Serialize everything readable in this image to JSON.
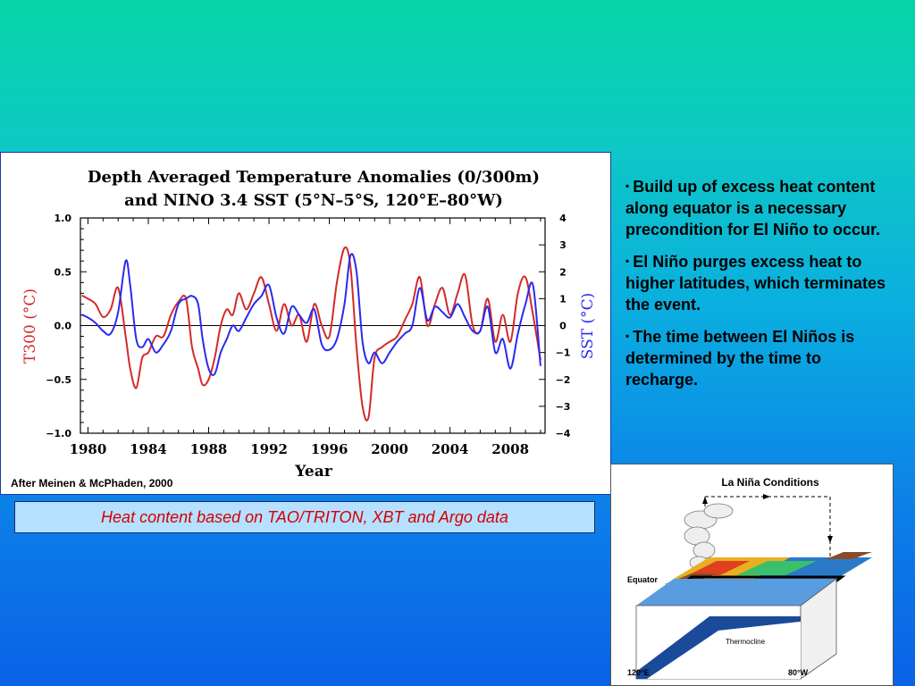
{
  "chart_data": {
    "type": "line",
    "title": "Depth Averaged Temperature Anomalies (0/300m)",
    "subtitle": "and NINO 3.4 SST (5°N–5°S, 120°E–80°W)",
    "xlabel": "Year",
    "ylabel_left": "T300 (°C)",
    "ylabel_right": "SST (°C)",
    "xlim": [
      1979.5,
      2010.3
    ],
    "ylim_left": [
      -1.0,
      1.0
    ],
    "ylim_right": [
      -4,
      4
    ],
    "x_ticks": [
      1980,
      1984,
      1988,
      1992,
      1996,
      2000,
      2004,
      2008
    ],
    "x_tick_labels": [
      "1980",
      "1984",
      "1988",
      "1992",
      "1996",
      "2000",
      "2004",
      "2008"
    ],
    "y_left_ticks": [
      -1.0,
      -0.5,
      0.0,
      0.5,
      1.0
    ],
    "y_left_tick_labels": [
      "−1.0",
      "−0.5",
      "0.0",
      "0.5",
      "1.0"
    ],
    "y_right_ticks": [
      -4,
      -3,
      -2,
      -1,
      0,
      1,
      2,
      3,
      4
    ],
    "y_right_tick_labels": [
      "−4",
      "−3",
      "−2",
      "−1",
      "0",
      "1",
      "2",
      "3",
      "4"
    ],
    "grid": false,
    "series": [
      {
        "color": "#d42a2a",
        "axis": "left",
        "x": [
          1979.6,
          1980.0,
          1980.5,
          1981.0,
          1981.5,
          1982.0,
          1982.5,
          1982.8,
          1983.2,
          1983.6,
          1984.0,
          1984.5,
          1985.0,
          1985.5,
          1986.0,
          1986.5,
          1986.9,
          1987.3,
          1987.6,
          1988.0,
          1988.4,
          1988.8,
          1989.2,
          1989.6,
          1990.0,
          1990.5,
          1991.0,
          1991.5,
          1992.0,
          1992.5,
          1993.0,
          1993.5,
          1994.0,
          1994.5,
          1995.0,
          1995.5,
          1996.0,
          1996.5,
          1997.0,
          1997.4,
          1997.8,
          1998.2,
          1998.6,
          1999.0,
          1999.5,
          2000.0,
          2000.5,
          2001.0,
          2001.5,
          2002.0,
          2002.5,
          2003.0,
          2003.5,
          2004.0,
          2004.5,
          2005.0,
          2005.5,
          2006.0,
          2006.5,
          2007.0,
          2007.5,
          2008.0,
          2008.5,
          2009.0,
          2009.5,
          2010.0
        ],
        "values": [
          0.28,
          0.25,
          0.2,
          0.08,
          0.15,
          0.35,
          -0.1,
          -0.4,
          -0.58,
          -0.3,
          -0.25,
          -0.1,
          -0.1,
          0.1,
          0.22,
          0.25,
          -0.2,
          -0.4,
          -0.55,
          -0.5,
          -0.3,
          0.0,
          0.15,
          0.1,
          0.3,
          0.15,
          0.3,
          0.45,
          0.2,
          -0.05,
          0.2,
          0.0,
          0.1,
          -0.15,
          0.2,
          0.0,
          -0.1,
          0.4,
          0.72,
          0.55,
          -0.2,
          -0.75,
          -0.85,
          -0.3,
          -0.2,
          -0.15,
          -0.1,
          0.05,
          0.2,
          0.45,
          0.0,
          0.2,
          0.35,
          0.1,
          0.3,
          0.47,
          0.0,
          -0.05,
          0.25,
          -0.15,
          0.1,
          -0.15,
          0.3,
          0.45,
          0.1,
          -0.32
        ]
      },
      {
        "color": "#2a2af0",
        "axis": "right",
        "x": [
          1979.6,
          1980.0,
          1980.5,
          1981.0,
          1981.5,
          1982.0,
          1982.5,
          1982.8,
          1983.2,
          1983.6,
          1984.0,
          1984.5,
          1985.0,
          1985.5,
          1986.0,
          1986.5,
          1986.9,
          1987.3,
          1987.6,
          1988.0,
          1988.4,
          1988.8,
          1989.2,
          1989.6,
          1990.0,
          1990.5,
          1991.0,
          1991.5,
          1992.0,
          1992.5,
          1993.0,
          1993.5,
          1994.0,
          1994.5,
          1995.0,
          1995.5,
          1996.0,
          1996.5,
          1997.0,
          1997.4,
          1997.8,
          1998.2,
          1998.6,
          1999.0,
          1999.5,
          2000.0,
          2000.5,
          2001.0,
          2001.5,
          2002.0,
          2002.5,
          2003.0,
          2003.5,
          2004.0,
          2004.5,
          2005.0,
          2005.5,
          2006.0,
          2006.5,
          2007.0,
          2007.5,
          2008.0,
          2008.5,
          2009.0,
          2009.5,
          2010.0
        ],
        "values": [
          0.4,
          0.3,
          0.1,
          -0.2,
          -0.3,
          0.5,
          2.4,
          1.5,
          -0.5,
          -0.8,
          -0.5,
          -1.0,
          -0.7,
          -0.2,
          0.8,
          1.0,
          1.1,
          0.8,
          -0.5,
          -1.6,
          -1.8,
          -1.0,
          -0.5,
          0.0,
          -0.2,
          0.3,
          0.8,
          1.1,
          1.5,
          0.3,
          -0.3,
          0.7,
          0.4,
          0.1,
          0.6,
          -0.7,
          -0.9,
          -0.5,
          0.8,
          2.6,
          2.0,
          -0.6,
          -1.4,
          -1.0,
          -1.4,
          -1.0,
          -0.6,
          -0.3,
          0.0,
          1.4,
          0.2,
          0.7,
          0.5,
          0.3,
          0.8,
          0.3,
          -0.2,
          -0.2,
          0.7,
          -1.0,
          -0.5,
          -1.6,
          -0.3,
          0.8,
          1.5,
          -1.5
        ]
      }
    ]
  },
  "credit": "After Meinen & McPhaden, 2000",
  "caption": "Heat content based on TAO/TRITON, XBT and Argo data",
  "bullets": [
    "Build up of excess heat content along equator is a necessary precondition for El Niño to occur.",
    "El Niño purges excess heat to higher latitudes, which terminates the event.",
    "The time between El Niños is determined by the time to recharge."
  ],
  "bullet_marker": "▪",
  "diagram": {
    "title": "La Niña Conditions",
    "equator_label": "Equator",
    "thermocline_label": "Thermocline",
    "left_lon": "120°E",
    "right_lon": "80°W"
  },
  "colors": {
    "t300": "#d42a2a",
    "sst": "#2a2af0",
    "caption_text": "#d40000",
    "caption_bg": "#b6e0ff"
  }
}
